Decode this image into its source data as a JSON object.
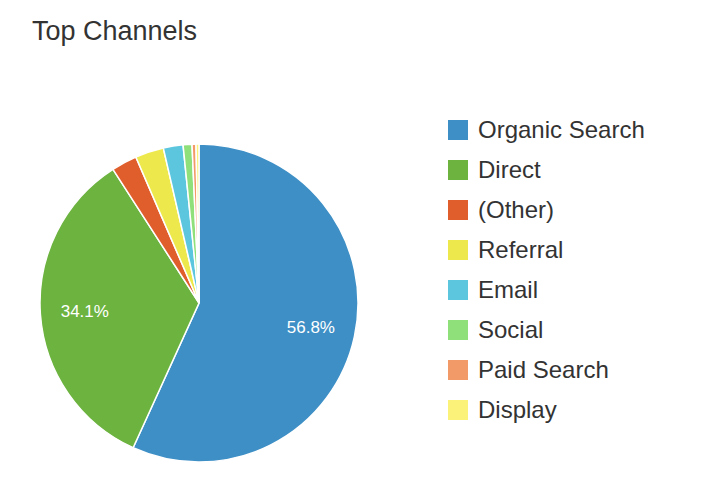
{
  "chart_data": {
    "type": "pie",
    "title": "Top Channels",
    "categories": [
      "Organic Search",
      "Direct",
      "(Other)",
      "Referral",
      "Email",
      "Social",
      "Paid Search",
      "Display"
    ],
    "values": [
      56.8,
      34.1,
      2.6,
      2.9,
      2.0,
      0.9,
      0.4,
      0.3
    ],
    "value_labels": [
      "56.8%",
      "34.1%",
      null,
      null,
      null,
      null,
      null,
      null
    ],
    "colors": [
      "#3d8fc6",
      "#6cb33f",
      "#e05d2c",
      "#ede94c",
      "#5cc6df",
      "#8fe07b",
      "#f39b68",
      "#fbf27a"
    ],
    "data_labels": true,
    "legend": "right"
  }
}
